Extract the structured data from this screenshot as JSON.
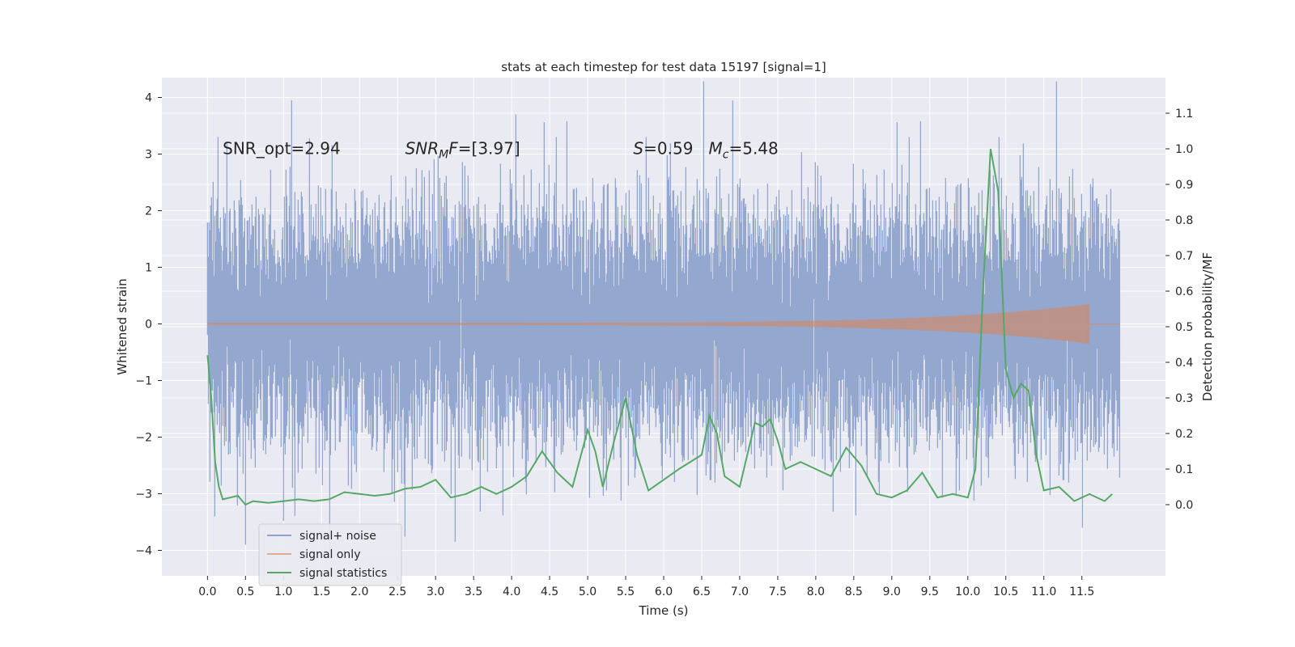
{
  "chart_data": {
    "type": "line",
    "title": "stats at each timestep for test data 15197 [signal=1]",
    "xlabel": "Time (s)",
    "ylabel": "Whitened strain",
    "y2label": "Detection probability/MF",
    "xlim": [
      -0.6,
      12.6
    ],
    "ylim": [
      -4.45,
      4.35
    ],
    "y2lim": [
      -0.2,
      1.2
    ],
    "xticks": [
      0,
      0.5,
      1,
      1.5,
      2,
      2.5,
      3,
      3.5,
      4,
      4.5,
      5,
      5.5,
      6,
      6.5,
      7,
      7.5,
      8,
      8.5,
      9,
      9.5,
      10,
      10.5,
      11,
      11.5
    ],
    "xtick_labels": [
      "0.0",
      "0.5",
      "1.0",
      "1.5",
      "2.0",
      "2.5",
      "3.0",
      "3.5",
      "4.0",
      "4.5",
      "5.0",
      "5.5",
      "6.0",
      "6.5",
      "7.0",
      "7.5",
      "8.0",
      "8.5",
      "9.0",
      "9.5",
      "10.0",
      "10.5",
      "11.0",
      "11.5"
    ],
    "yticks": [
      -4,
      -3,
      -2,
      -1,
      0,
      1,
      2,
      3,
      4
    ],
    "ytick_labels": [
      "−4",
      "−3",
      "−2",
      "−1",
      "0",
      "1",
      "2",
      "3",
      "4"
    ],
    "y2ticks": [
      0.0,
      0.1,
      0.2,
      0.3,
      0.4,
      0.5,
      0.6,
      0.7,
      0.8,
      0.9,
      1.0,
      1.1
    ],
    "y2tick_labels": [
      "0.0",
      "0.1",
      "0.2",
      "0.3",
      "0.4",
      "0.5",
      "0.6",
      "0.7",
      "0.8",
      "0.9",
      "1.0",
      "1.1"
    ],
    "grid": true,
    "legend": "lower-left",
    "annotations": [
      {
        "label": "SNR_opt=2.94",
        "x": 0.2,
        "y": 3.1
      },
      {
        "label": "SNR_MF=[3.97]",
        "x": 2.6,
        "y": 3.1
      },
      {
        "label": "S=0.59   M_c=5.48",
        "x": 5.6,
        "y": 3.1
      }
    ],
    "colors": {
      "background": "#eaeaf2",
      "noise": "#8ea3cc",
      "signal": "#dd8452",
      "statistic": "#55a868"
    },
    "series": [
      {
        "name": "signal+ noise",
        "kind": "noise",
        "axis": "left",
        "x_range": [
          0.0,
          12.0
        ],
        "amplitude_std": 1.0,
        "extreme_peaks": [
          {
            "x": 1.1,
            "y": 3.95
          },
          {
            "x": 4.05,
            "y": 3.7
          },
          {
            "x": 6.9,
            "y": 3.95
          },
          {
            "x": 0.5,
            "y": -3.9
          },
          {
            "x": 3.25,
            "y": -3.85
          },
          {
            "x": 11.5,
            "y": -3.6
          }
        ]
      },
      {
        "name": "signal only",
        "kind": "chirp",
        "axis": "left",
        "x_range": [
          0.0,
          11.6
        ],
        "start_amplitude": 0.02,
        "peak_amplitude": 0.35,
        "peak_x": 11.6
      },
      {
        "name": "signal statistics",
        "kind": "line",
        "axis": "right",
        "x": [
          0.0,
          0.05,
          0.1,
          0.15,
          0.2,
          0.3,
          0.4,
          0.5,
          0.6,
          0.8,
          1.0,
          1.2,
          1.4,
          1.6,
          1.8,
          2.0,
          2.2,
          2.4,
          2.6,
          2.8,
          3.0,
          3.2,
          3.4,
          3.6,
          3.8,
          4.0,
          4.2,
          4.4,
          4.6,
          4.8,
          5.0,
          5.1,
          5.2,
          5.35,
          5.5,
          5.65,
          5.8,
          6.0,
          6.2,
          6.5,
          6.6,
          6.7,
          6.8,
          7.0,
          7.2,
          7.3,
          7.4,
          7.5,
          7.6,
          7.8,
          8.0,
          8.2,
          8.4,
          8.6,
          8.8,
          9.0,
          9.2,
          9.4,
          9.6,
          9.8,
          10.0,
          10.1,
          10.2,
          10.3,
          10.4,
          10.5,
          10.6,
          10.7,
          10.8,
          10.9,
          11.0,
          11.2,
          11.4,
          11.6,
          11.8,
          11.9
        ],
        "y": [
          0.42,
          0.3,
          0.12,
          0.05,
          0.015,
          0.02,
          0.025,
          0.0,
          0.01,
          0.005,
          0.01,
          0.015,
          0.01,
          0.015,
          0.035,
          0.03,
          0.025,
          0.03,
          0.045,
          0.05,
          0.07,
          0.02,
          0.03,
          0.05,
          0.03,
          0.05,
          0.08,
          0.15,
          0.09,
          0.05,
          0.21,
          0.15,
          0.05,
          0.18,
          0.3,
          0.14,
          0.04,
          0.07,
          0.1,
          0.14,
          0.25,
          0.2,
          0.08,
          0.05,
          0.23,
          0.22,
          0.24,
          0.18,
          0.1,
          0.12,
          0.1,
          0.08,
          0.16,
          0.11,
          0.03,
          0.02,
          0.04,
          0.09,
          0.02,
          0.03,
          0.02,
          0.1,
          0.6,
          1.0,
          0.88,
          0.38,
          0.3,
          0.34,
          0.32,
          0.14,
          0.04,
          0.05,
          0.01,
          0.03,
          0.01,
          0.03
        ]
      }
    ]
  }
}
